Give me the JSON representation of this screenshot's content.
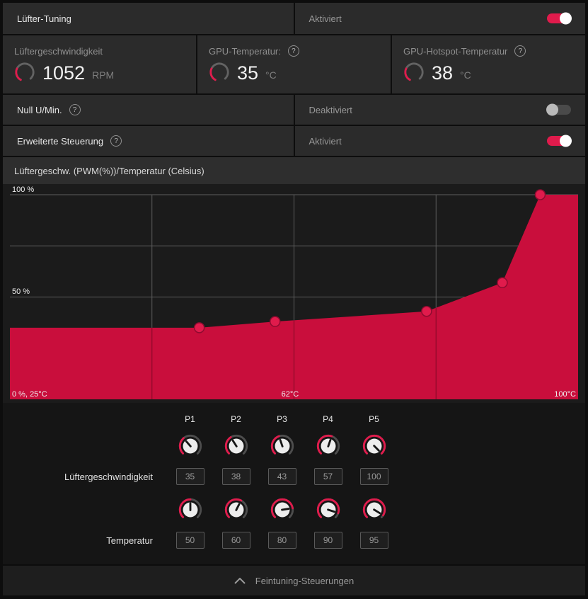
{
  "colors": {
    "accent": "#e01b4c",
    "chart_fill": "#c90e3c"
  },
  "icons": {
    "help": "?"
  },
  "header": {
    "title": "Lüfter-Tuning",
    "status": "Aktiviert",
    "enabled": true
  },
  "gauges": [
    {
      "label": "Lüftergeschwindigkeit",
      "value": "1052",
      "unit": "RPM",
      "fraction": 0.3
    },
    {
      "label": "GPU-Temperatur:",
      "value": "35",
      "unit": "°C",
      "fraction": 0.3
    },
    {
      "label": "GPU-Hotspot-Temperatur",
      "value": "38",
      "unit": "°C",
      "fraction": 0.3
    }
  ],
  "switch_rows": [
    {
      "label": "Null U/Min.",
      "status": "Deaktiviert",
      "enabled": false
    },
    {
      "label": "Erweiterte Steuerung",
      "status": "Aktiviert",
      "enabled": true
    }
  ],
  "chart_data": {
    "type": "area",
    "title": "Lüftergeschw. (PWM(%))/Temperatur (Celsius)",
    "x": [
      50,
      60,
      80,
      90,
      95
    ],
    "series": [
      {
        "name": "Lüftergeschwindigkeit (PWM %)",
        "values": [
          35,
          38,
          43,
          57,
          100
        ]
      }
    ],
    "xlim": [
      25,
      100
    ],
    "ylim": [
      0,
      100
    ],
    "grid": true,
    "flat_from_left": true,
    "flat_to_right": true,
    "y_tick_labels": [
      "100 %",
      "50 %"
    ],
    "x_tick_labels": [
      "0 %, 25°C",
      "62°C",
      "100°C"
    ]
  },
  "points": {
    "columns": [
      "P1",
      "P2",
      "P3",
      "P4",
      "P5"
    ]
  },
  "knob_rows": [
    {
      "label": "Lüftergeschwindigkeit",
      "values": [
        35,
        38,
        43,
        57,
        100
      ]
    },
    {
      "label": "Temperatur",
      "values": [
        50,
        60,
        80,
        90,
        95
      ]
    }
  ],
  "footer": {
    "label": "Feintuning-Steuerungen"
  }
}
